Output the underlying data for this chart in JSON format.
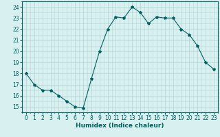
{
  "x": [
    0,
    1,
    2,
    3,
    4,
    5,
    6,
    7,
    8,
    9,
    10,
    11,
    12,
    13,
    14,
    15,
    16,
    17,
    18,
    19,
    20,
    21,
    22,
    23
  ],
  "y": [
    18.0,
    17.0,
    16.5,
    16.5,
    16.0,
    15.5,
    15.0,
    14.9,
    17.5,
    20.0,
    22.0,
    23.1,
    23.0,
    24.0,
    23.5,
    22.5,
    23.1,
    23.0,
    23.0,
    22.0,
    21.5,
    20.5,
    19.0,
    18.4
  ],
  "line_color": "#006060",
  "marker": "*",
  "marker_size": 3,
  "bg_color": "#d8f0f0",
  "grid_color": "#b8d8d8",
  "xlabel": "Humidex (Indice chaleur)",
  "xlabel_fontsize": 6.5,
  "tick_fontsize": 5.5,
  "ylabel_ticks": [
    15,
    16,
    17,
    18,
    19,
    20,
    21,
    22,
    23,
    24
  ],
  "xlim": [
    -0.5,
    23.5
  ],
  "ylim": [
    14.5,
    24.5
  ]
}
